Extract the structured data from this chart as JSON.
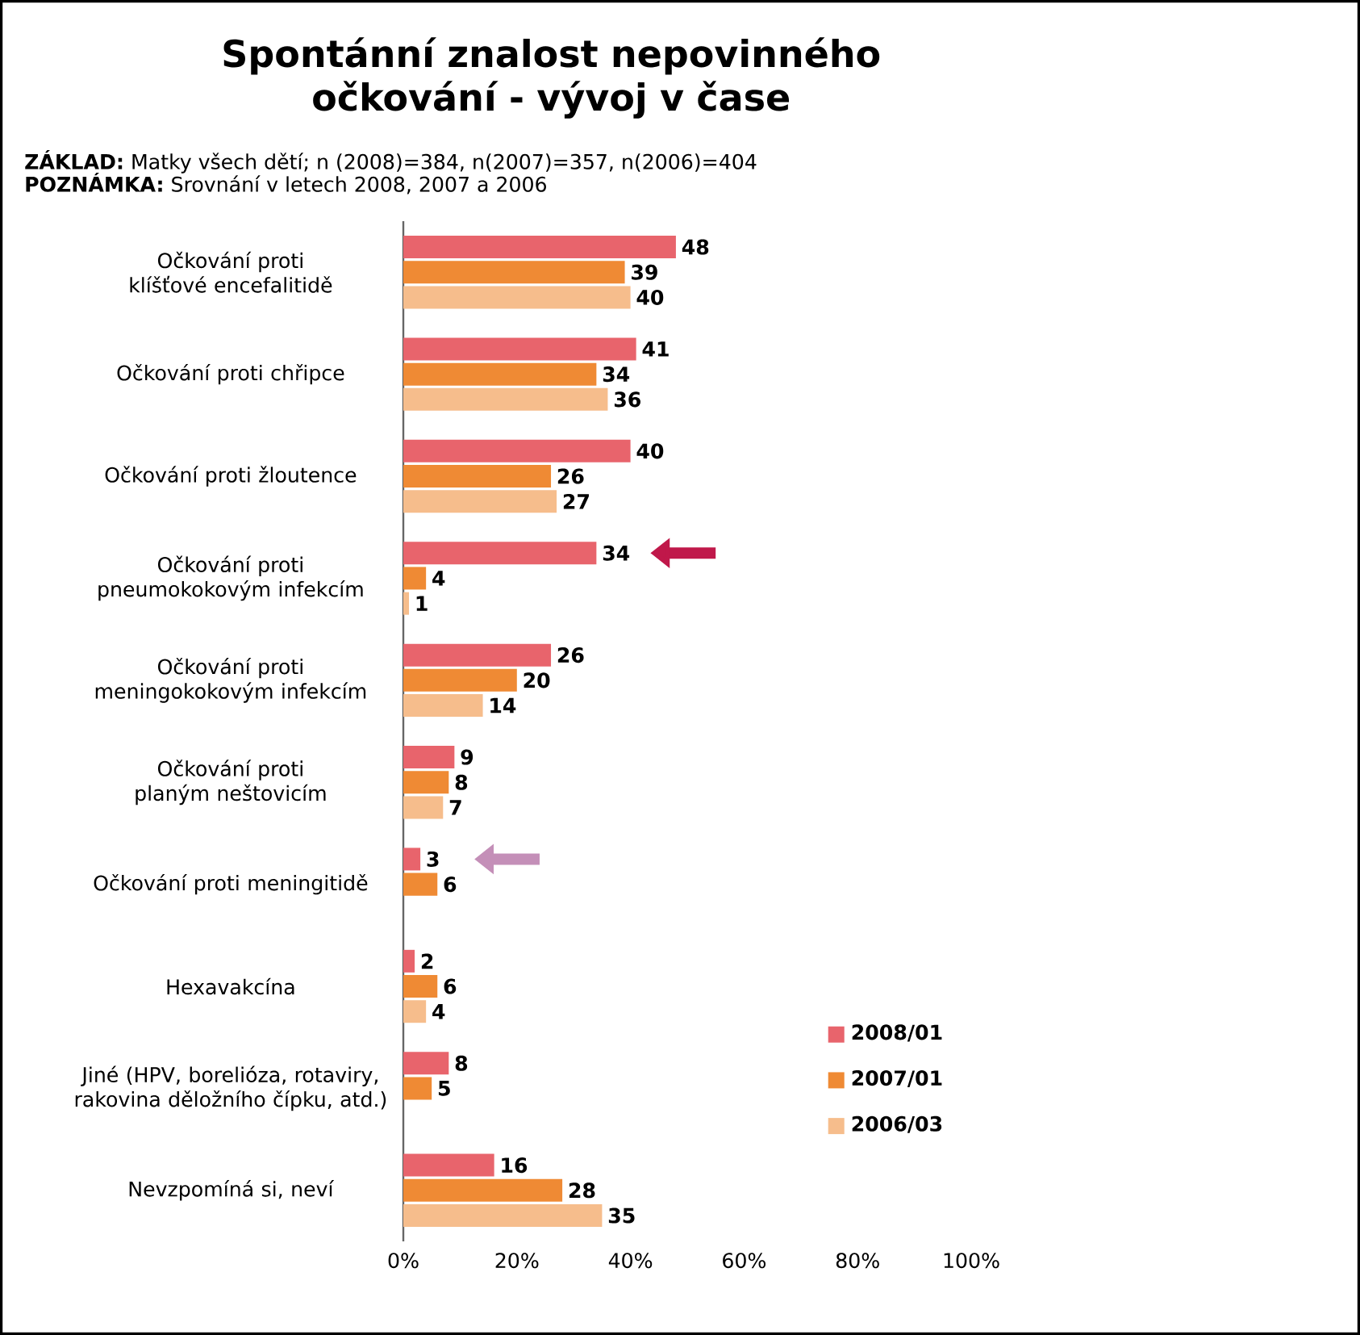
{
  "chart_data": {
    "type": "bar",
    "orientation": "horizontal",
    "title": "Spontánní znalost nepovinného očkování - vývoj v čase",
    "subtitle": "**ZÁKLAD:** Matky všech dětí; n (2008)=384, n(2007)=357, n(2006)=404",
    "annotations": [
      "**POZNÁMKA:** Srovnání v letech 2008, 2007 a 2006"
    ],
    "categories": [
      "Očkování proti klíšťové encefalitidě",
      "Očkování proti chřipce",
      "Očkování proti žloutence",
      "Očkování proti pneumokokovým infekcím",
      "Očkování proti meningokokovým infekcím",
      "Očkování proti planým neštovicím",
      "Očkování proti meningitidě",
      "Hexavakcína",
      "Jiné (HPV, borelióza, rotaviry, rakovina děložního čípku, atd.)",
      "Nevzpomíná si, neví"
    ],
    "series": [
      {
        "name": "2008/01",
        "color": "#e8646c",
        "values": [
          48,
          41,
          40,
          34,
          26,
          9,
          3,
          2,
          8,
          16
        ]
      },
      {
        "name": "2007/01",
        "color": "#ef8a34",
        "values": [
          39,
          34,
          26,
          4,
          20,
          8,
          6,
          6,
          5,
          28
        ]
      },
      {
        "name": "2006/03",
        "color": "#f6bd8c",
        "values": [
          40,
          36,
          27,
          1,
          14,
          7,
          null,
          4,
          null,
          35
        ]
      }
    ],
    "xlim": [
      0,
      100
    ],
    "xticks": [
      {
        "value": 0,
        "label": "0%"
      },
      {
        "value": 20,
        "label": "20%"
      },
      {
        "value": 40,
        "label": "40%"
      },
      {
        "value": 60,
        "label": "60%"
      },
      {
        "value": 80,
        "label": "80%"
      },
      {
        "value": 100,
        "label": "100%"
      }
    ],
    "data_labels": true,
    "legend": "bottom right",
    "grid": false
  }
}
